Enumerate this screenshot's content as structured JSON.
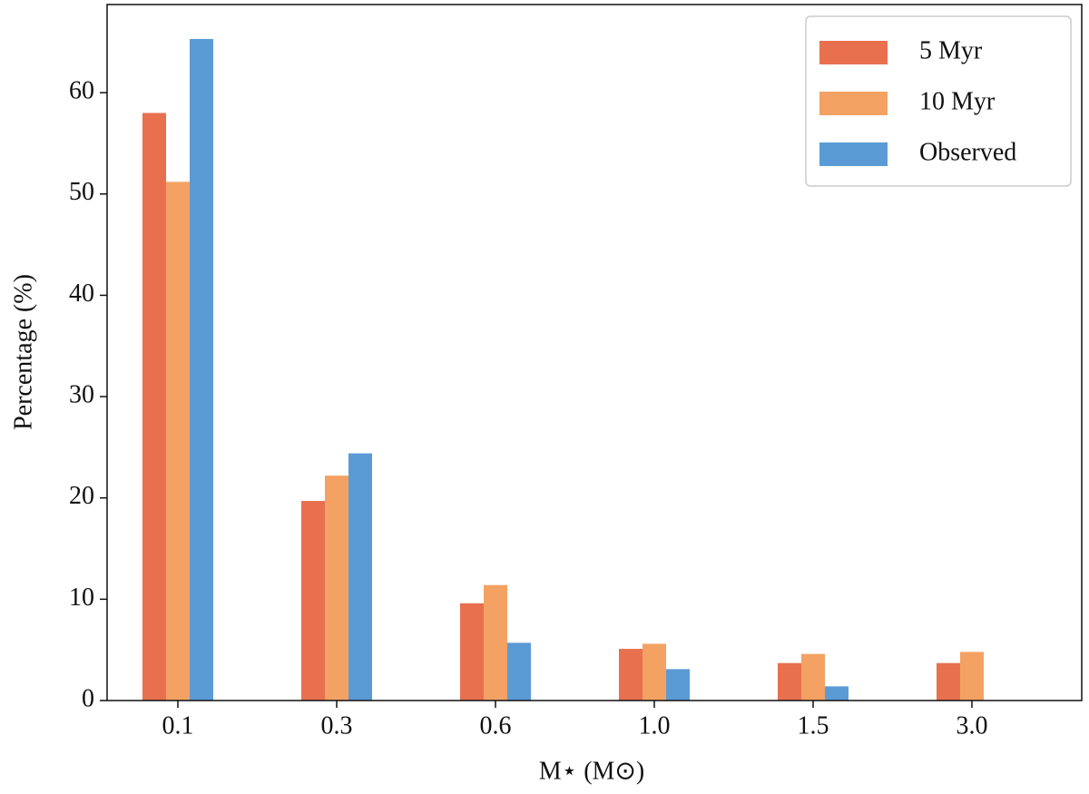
{
  "chart_data": {
    "type": "bar",
    "x_label": "M⋆ (M⊙)",
    "y_label": "Percentage (%)",
    "categories": [
      "0.1",
      "0.3",
      "0.6",
      "1.0",
      "1.5",
      "3.0"
    ],
    "series": [
      {
        "name": "5 Myr",
        "color": "#e8704f",
        "values": [
          58.0,
          19.7,
          9.6,
          5.1,
          3.7,
          3.7
        ]
      },
      {
        "name": "10 Myr",
        "color": "#f3a263",
        "values": [
          51.2,
          22.2,
          11.4,
          5.6,
          4.6,
          4.8
        ]
      },
      {
        "name": "Observed",
        "color": "#5b9bd5",
        "values": [
          65.3,
          24.4,
          5.7,
          3.1,
          1.4,
          null
        ]
      }
    ],
    "ylim": [
      0,
      68.7
    ],
    "yticks": [
      0,
      10,
      20,
      30,
      40,
      50,
      60
    ],
    "grid": false,
    "legend": "upper right"
  }
}
